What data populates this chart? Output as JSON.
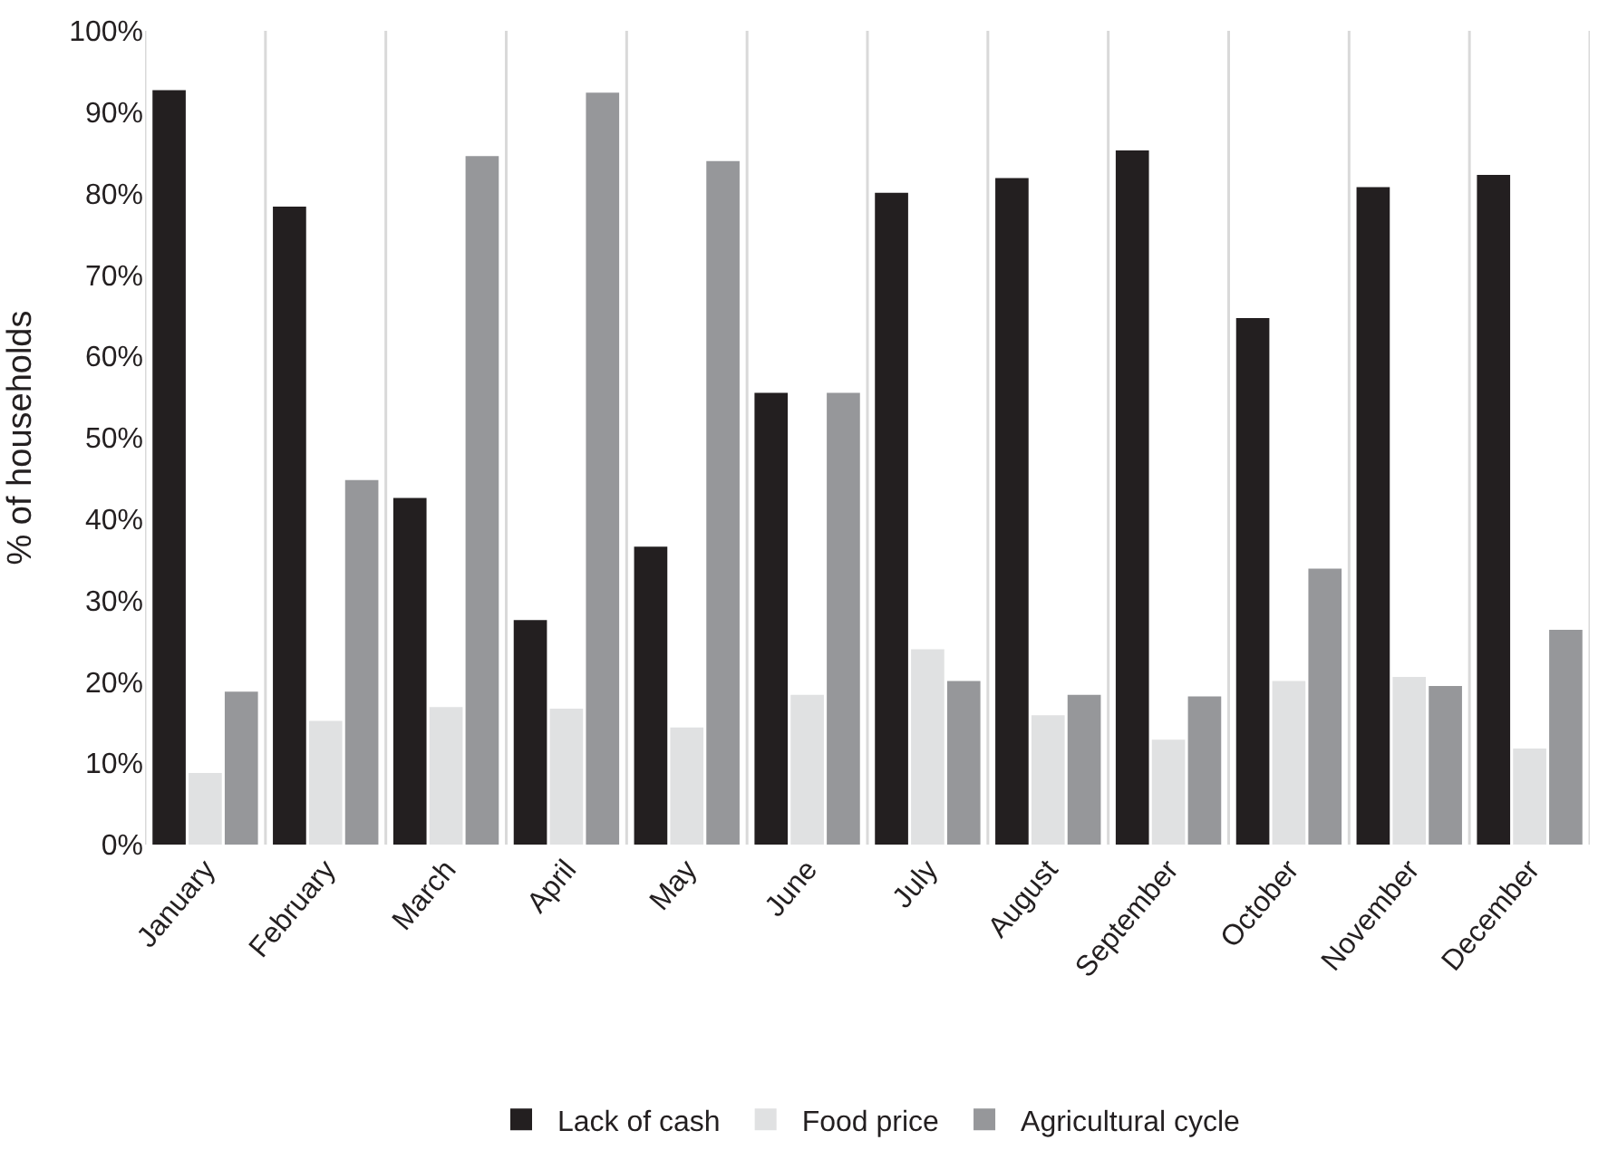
{
  "chart_data": {
    "type": "bar",
    "ylabel": "% of households",
    "categories": [
      "January",
      "February",
      "March",
      "April",
      "May",
      "June",
      "July",
      "August",
      "September",
      "October",
      "November",
      "December"
    ],
    "series": [
      {
        "name": "Lack of cash",
        "color": "#231f20",
        "values": [
          92.7,
          78.4,
          42.6,
          27.6,
          36.6,
          55.5,
          80.1,
          81.9,
          85.3,
          64.7,
          80.8,
          82.3
        ]
      },
      {
        "name": "Food price",
        "color": "#e0e1e2",
        "values": [
          8.8,
          15.2,
          16.9,
          16.7,
          14.4,
          18.4,
          24,
          15.9,
          12.9,
          20.1,
          20.6,
          11.8
        ]
      },
      {
        "name": "Agricultural cycle",
        "color": "#96979a",
        "values": [
          18.8,
          44.8,
          84.6,
          92.4,
          84,
          55.5,
          20.1,
          18.4,
          18.2,
          33.9,
          19.5,
          26.4
        ]
      }
    ],
    "ylim": [
      0,
      100
    ],
    "yticks": [
      {
        "value": 0,
        "label": "0%"
      },
      {
        "value": 10,
        "label": "10%"
      },
      {
        "value": 20,
        "label": "20%"
      },
      {
        "value": 30,
        "label": "30%"
      },
      {
        "value": 40,
        "label": "40%"
      },
      {
        "value": 50,
        "label": "50%"
      },
      {
        "value": 60,
        "label": "60%"
      },
      {
        "value": 70,
        "label": "70%"
      },
      {
        "value": 80,
        "label": "80%"
      },
      {
        "value": 90,
        "label": "90%"
      },
      {
        "value": 100,
        "label": "100%"
      }
    ],
    "grid": "x",
    "legend": "bottom"
  }
}
